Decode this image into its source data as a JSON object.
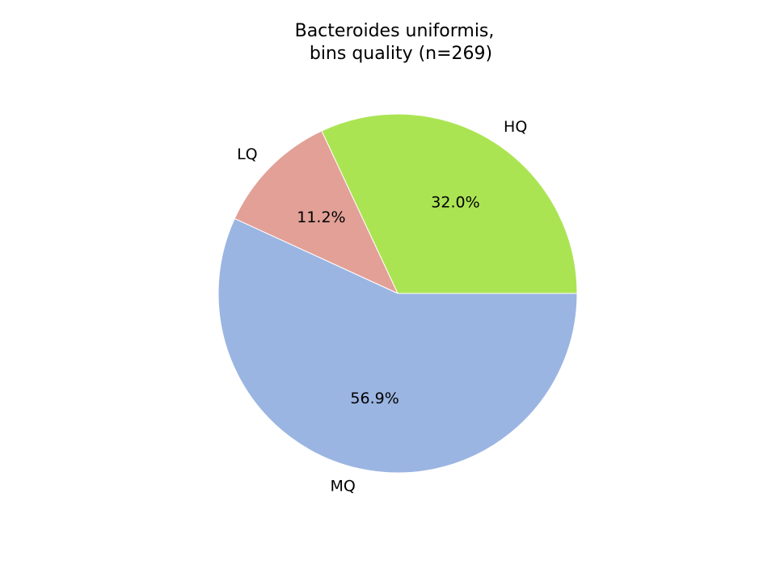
{
  "chart_data": {
    "type": "pie",
    "title_lines": [
      "Bacteroides uniformis,",
      "bins quality (n=269)"
    ],
    "slices": [
      {
        "label": "HQ",
        "percent": 32.0,
        "percent_label": "32.0%",
        "color": "#abe453"
      },
      {
        "label": "LQ",
        "percent": 11.2,
        "percent_label": "11.2%",
        "color": "#e2a097"
      },
      {
        "label": "MQ",
        "percent": 56.9,
        "percent_label": "56.9%",
        "color": "#9bb5e2"
      }
    ],
    "start_angle_deg": 0,
    "direction": "counterclockwise",
    "legend": "none"
  }
}
